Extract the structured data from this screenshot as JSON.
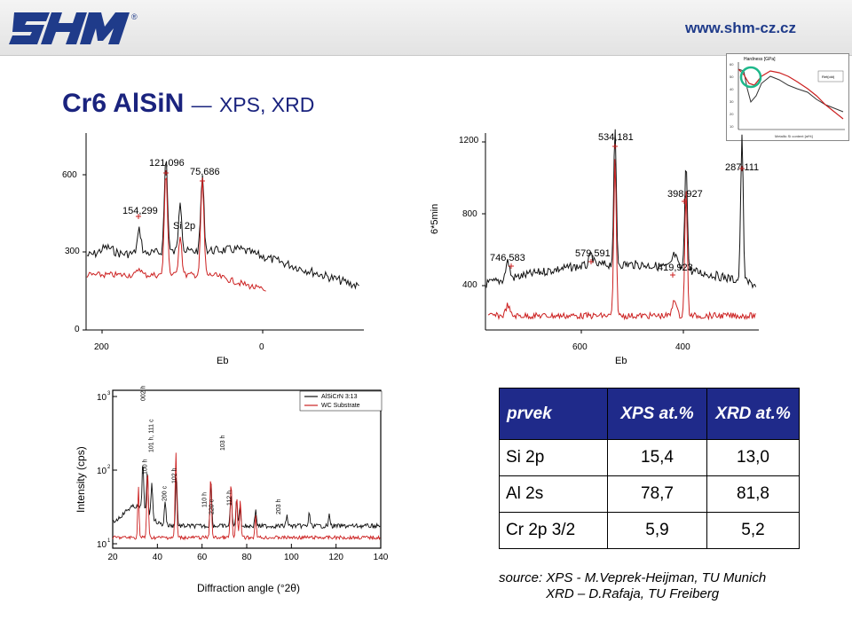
{
  "header": {
    "url": "www.shm-cz.cz",
    "logo_text": "SHM"
  },
  "title": {
    "main": "Cr6 AlSiN",
    "dash": "—",
    "sub": "XPS, XRD"
  },
  "inset": {
    "title": "Hardness [GPa]",
    "xlabel": "Metallic Si content [at%]",
    "legend": "Ref(old)",
    "highlight_color": "#1db88a"
  },
  "table": {
    "headers": [
      "prvek",
      "XPS at.%",
      "XRD at.%"
    ],
    "rows": [
      [
        "Si 2p",
        "15,4",
        "13,0"
      ],
      [
        "Al 2s",
        "78,7",
        "81,8"
      ],
      [
        "Cr 2p 3/2",
        "5,9",
        "5,2"
      ]
    ]
  },
  "source": {
    "line1": "source: XPS - M.Veprek-Heijman, TU Munich",
    "line2": "XRD – D.Rafaja, TU Freiberg"
  },
  "colors": {
    "black_series": "#111111",
    "red_series": "#cc2020",
    "title": "#1a237e",
    "table_header": "#1f2a8a"
  },
  "chart_data": [
    {
      "type": "line",
      "panel": "XPS left",
      "xlabel": "Eb",
      "x_ticks": [
        "200",
        "0"
      ],
      "y_ticks": [
        "0",
        "300",
        "600"
      ],
      "ylim": [
        0,
        700
      ],
      "annotations": [
        "121,096",
        "75,686",
        "154,299",
        "Si 2p"
      ],
      "series": [
        {
          "values": []
        },
        {
          "values": []
        }
      ]
    },
    {
      "type": "line",
      "panel": "XPS right",
      "xlabel": "Eb",
      "ylabel": "6*5min",
      "x_ticks": [
        "600",
        "400"
      ],
      "y_ticks": [
        "400",
        "800",
        "1200"
      ],
      "ylim": [
        200,
        1350
      ],
      "annotations": [
        "534,181",
        "287,111",
        "398,927",
        "746,583",
        "579,591",
        "419,923"
      ],
      "series": [
        {
          "values": []
        },
        {
          "values": []
        }
      ]
    },
    {
      "type": "line",
      "panel": "XRD",
      "xlabel": "Diffraction angle (°2θ)",
      "ylabel": "Intensity (cps)",
      "xlim": [
        20,
        140
      ],
      "x_ticks": [
        "20",
        "40",
        "60",
        "80",
        "100",
        "120",
        "140"
      ],
      "y_ticks": [
        "10",
        "10",
        "10"
      ],
      "y_exponents": [
        "1",
        "2",
        "3"
      ],
      "log_y": true,
      "peak_labels": [
        "002 h",
        "100 h",
        "101 h, 111 c",
        "200 c",
        "102 h",
        "110 h",
        "220 c",
        "103 h",
        "112 h",
        "203 h"
      ],
      "series": [
        {
          "name": "AlSiCrN 3:13",
          "values": []
        },
        {
          "name": "WC Substrate",
          "values": []
        }
      ]
    }
  ]
}
